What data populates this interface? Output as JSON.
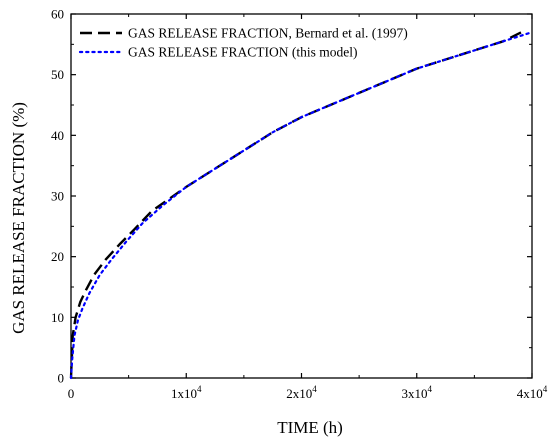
{
  "chart_data": {
    "type": "line",
    "xlabel": "TIME (h)",
    "ylabel": "GAS RELEASE FRACTION (%)",
    "xlim": [
      0,
      40000
    ],
    "ylim": [
      0,
      60
    ],
    "x_ticks": [
      {
        "value": 0,
        "label": "0"
      },
      {
        "value": 10000,
        "label": "1x10",
        "exp": "4"
      },
      {
        "value": 20000,
        "label": "2x10",
        "exp": "4"
      },
      {
        "value": 30000,
        "label": "3x10",
        "exp": "4"
      },
      {
        "value": 40000,
        "label": "4x10",
        "exp": "4"
      }
    ],
    "y_ticks": [
      0,
      10,
      20,
      30,
      40,
      50,
      60
    ],
    "grid": false,
    "legend_position": "top-left",
    "series": [
      {
        "name": "GAS RELEASE FRACTION, Bernard et al. (1997)",
        "color": "#000000",
        "style": "dashed",
        "x": [
          0,
          150,
          400,
          800,
          1300,
          2000,
          3000,
          4200,
          5500,
          7000,
          8500,
          10000,
          12500,
          15000,
          17500,
          20000,
          22500,
          25000,
          27500,
          30000,
          32500,
          35000,
          37500,
          39300
        ],
        "y": [
          0,
          7,
          10,
          12.5,
          14.5,
          17,
          19.5,
          22,
          24.5,
          27.5,
          29.5,
          31.5,
          34.5,
          37.5,
          40.5,
          43,
          45,
          47,
          49,
          51,
          52.5,
          54,
          55.5,
          57.2
        ]
      },
      {
        "name": "GAS RELEASE FRACTION (this model)",
        "color": "#0000ff",
        "style": "dotted",
        "x": [
          0,
          100,
          300,
          600,
          1000,
          1600,
          2500,
          3500,
          4800,
          6200,
          8000,
          10000,
          12500,
          15000,
          17500,
          20000,
          22500,
          25000,
          27500,
          30000,
          32500,
          35000,
          37500,
          40000
        ],
        "y": [
          0,
          3,
          7,
          9.5,
          11.5,
          14,
          17,
          19.5,
          22.5,
          25.5,
          28.5,
          31.5,
          34.5,
          37.5,
          40.5,
          43,
          45,
          47,
          49,
          51,
          52.5,
          54,
          55.5,
          57
        ]
      }
    ]
  }
}
